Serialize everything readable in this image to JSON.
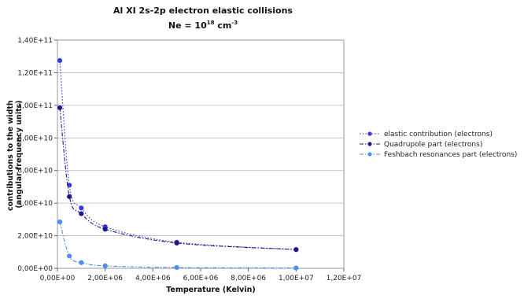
{
  "chart_data": {
    "type": "line",
    "title": "Al XI 2s-2p electron elastic  collisions",
    "subtitle": {
      "prefix": "Ne = 10",
      "exponent": "18",
      "unit": " cm",
      "unit_exponent": "-3"
    },
    "xlabel": "Temperature (Kelvin)",
    "ylabel": [
      "contributions to the width",
      "(angular frequency units)"
    ],
    "xlim": [
      0,
      12000000
    ],
    "ylim": [
      0,
      140000000000
    ],
    "x_ticks": [
      0,
      2000000,
      4000000,
      6000000,
      8000000,
      10000000,
      12000000
    ],
    "x_tick_labels": [
      "0,00E+00",
      "2,00E+06",
      "4,00E+06",
      "6,00E+06",
      "8,00E+06",
      "1,00E+07",
      "1,20E+07"
    ],
    "y_ticks": [
      0,
      20000000000,
      40000000000,
      60000000000,
      80000000000,
      100000000000,
      120000000000,
      140000000000
    ],
    "y_tick_labels": [
      "0,00E+00",
      "2,00E+10",
      "4,00E+10",
      "6,00E+10",
      "8,00E+10",
      "1,00E+11",
      "1,20E+11",
      "1,40E+11"
    ],
    "grid": "horizontal",
    "legend_position": "right",
    "series": [
      {
        "name": "elastic contribution (electrons)",
        "color": "#3a3adf",
        "marker": "circle",
        "line": "dotted",
        "x": [
          100000,
          500000,
          1000000,
          2000000,
          5000000,
          10000000
        ],
        "y": [
          127500000000,
          51000000000,
          37000000000,
          25500000000,
          16000000000,
          11500000000
        ]
      },
      {
        "name": "Quadrupole part  (electrons)",
        "color": "#1a1a8c",
        "marker": "circle",
        "line": "dash-dot",
        "x": [
          100000,
          500000,
          1000000,
          2000000,
          5000000,
          10000000
        ],
        "y": [
          98500000000,
          44000000000,
          33500000000,
          24000000000,
          15500000000,
          11500000000
        ]
      },
      {
        "name": "Feshbach resonances part (electrons)",
        "color": "#4a90ee",
        "marker": "circle",
        "line": "dash-dot",
        "x": [
          100000,
          500000,
          1000000,
          2000000,
          5000000,
          10000000
        ],
        "y": [
          28500000000,
          7500000000,
          3500000000,
          1500000000,
          500000000,
          200000000
        ]
      }
    ]
  }
}
